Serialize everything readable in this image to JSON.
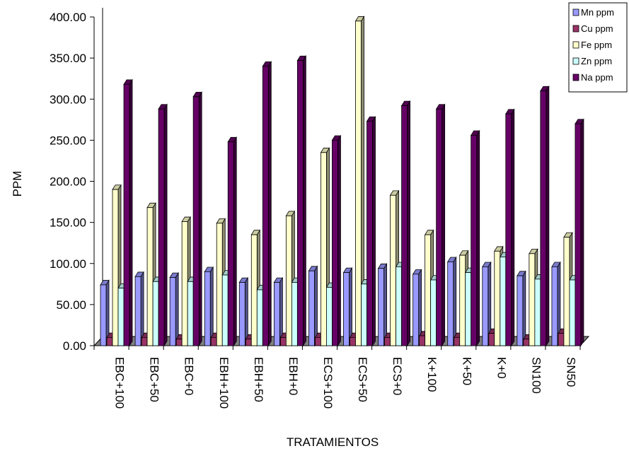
{
  "chart_data": {
    "type": "bar",
    "style": "3d-clustered-column",
    "xlabel": "TRATAMIENTOS",
    "ylabel": "PPM",
    "ylim": [
      0,
      400
    ],
    "yticks": [
      "0.00",
      "50.00",
      "100.00",
      "150.00",
      "200.00",
      "250.00",
      "300.00",
      "350.00",
      "400.00"
    ],
    "grid": false,
    "legend_position": "top-right",
    "categories": [
      "EBC+100",
      "EBC+50",
      "EBC+0",
      "EBH+100",
      "EBH+50",
      "EBH+0",
      "ECS+100",
      "ECS+50",
      "ECS+0",
      "K+100",
      "K+50",
      "K+0",
      "SN100",
      "SN50"
    ],
    "series": [
      {
        "name": "Mn ppm",
        "color": "#9999FF",
        "values": [
          74,
          84,
          83,
          90,
          77,
          77,
          91,
          89,
          94,
          87,
          102,
          96,
          85,
          96
        ]
      },
      {
        "name": "Cu ppm",
        "color": "#993366",
        "values": [
          10,
          10,
          8,
          10,
          8,
          10,
          10,
          10,
          10,
          12,
          10,
          15,
          8,
          15
        ]
      },
      {
        "name": "Fe ppm",
        "color": "#FFFFCC",
        "values": [
          190,
          168,
          151,
          149,
          135,
          158,
          235,
          395,
          183,
          135,
          110,
          115,
          112,
          132
        ]
      },
      {
        "name": "Zn ppm",
        "color": "#CCFFFF",
        "values": [
          70,
          78,
          78,
          86,
          68,
          77,
          71,
          75,
          96,
          80,
          89,
          108,
          81,
          80
        ]
      },
      {
        "name": "Na ppm",
        "color": "#660066",
        "values": [
          318,
          288,
          303,
          248,
          340,
          347,
          250,
          273,
          292,
          288,
          256,
          282,
          310,
          270
        ]
      }
    ]
  }
}
